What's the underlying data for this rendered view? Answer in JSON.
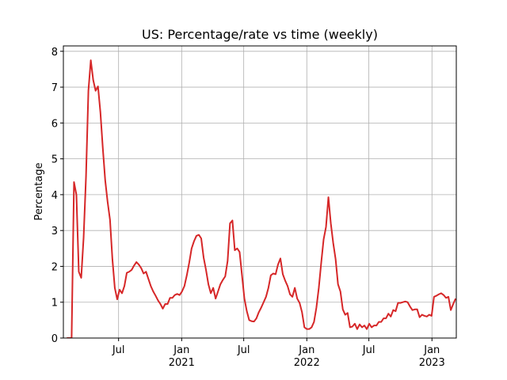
{
  "chart_data": {
    "type": "line",
    "title": "US: Percentage/rate vs time (weekly)",
    "y_label": "Percentage",
    "color": "#d62728",
    "grid": true,
    "xlim": [
      "2020-01-22",
      "2023-03-13"
    ],
    "ylim": [
      0,
      8.15
    ],
    "yticks": [
      0,
      1,
      2,
      3,
      4,
      5,
      6,
      7,
      8
    ],
    "xticks": [
      {
        "value": "2020-07-01",
        "label": "Jul"
      },
      {
        "value": "2021-01-01",
        "label": "Jan\n2021"
      },
      {
        "value": "2021-07-01",
        "label": "Jul"
      },
      {
        "value": "2022-01-01",
        "label": "Jan\n2022"
      },
      {
        "value": "2022-07-01",
        "label": "Jul"
      },
      {
        "value": "2023-01-01",
        "label": "Jan\n2023"
      }
    ],
    "x": [
      "2020-02-01",
      "2020-02-08",
      "2020-02-15",
      "2020-02-22",
      "2020-02-29",
      "2020-03-07",
      "2020-03-14",
      "2020-03-21",
      "2020-03-28",
      "2020-04-04",
      "2020-04-11",
      "2020-04-18",
      "2020-04-25",
      "2020-05-02",
      "2020-05-09",
      "2020-05-16",
      "2020-05-23",
      "2020-05-30",
      "2020-06-06",
      "2020-06-13",
      "2020-06-20",
      "2020-06-27",
      "2020-07-04",
      "2020-07-11",
      "2020-07-18",
      "2020-07-25",
      "2020-08-01",
      "2020-08-08",
      "2020-08-15",
      "2020-08-22",
      "2020-08-29",
      "2020-09-05",
      "2020-09-12",
      "2020-09-19",
      "2020-09-26",
      "2020-10-03",
      "2020-10-10",
      "2020-10-17",
      "2020-10-24",
      "2020-10-31",
      "2020-11-07",
      "2020-11-14",
      "2020-11-21",
      "2020-11-28",
      "2020-12-05",
      "2020-12-12",
      "2020-12-19",
      "2020-12-26",
      "2021-01-02",
      "2021-01-09",
      "2021-01-16",
      "2021-01-23",
      "2021-01-30",
      "2021-02-06",
      "2021-02-13",
      "2021-02-20",
      "2021-02-27",
      "2021-03-06",
      "2021-03-13",
      "2021-03-20",
      "2021-03-27",
      "2021-04-03",
      "2021-04-10",
      "2021-04-17",
      "2021-04-24",
      "2021-05-01",
      "2021-05-08",
      "2021-05-15",
      "2021-05-22",
      "2021-05-29",
      "2021-06-05",
      "2021-06-12",
      "2021-06-19",
      "2021-06-26",
      "2021-07-03",
      "2021-07-10",
      "2021-07-17",
      "2021-07-24",
      "2021-07-31",
      "2021-08-07",
      "2021-08-14",
      "2021-08-21",
      "2021-08-28",
      "2021-09-04",
      "2021-09-11",
      "2021-09-18",
      "2021-09-25",
      "2021-10-02",
      "2021-10-09",
      "2021-10-16",
      "2021-10-23",
      "2021-10-30",
      "2021-11-06",
      "2021-11-13",
      "2021-11-20",
      "2021-11-27",
      "2021-12-04",
      "2021-12-11",
      "2021-12-18",
      "2021-12-25",
      "2022-01-01",
      "2022-01-08",
      "2022-01-15",
      "2022-01-22",
      "2022-01-29",
      "2022-02-05",
      "2022-02-12",
      "2022-02-19",
      "2022-02-26",
      "2022-03-05",
      "2022-03-12",
      "2022-03-19",
      "2022-03-26",
      "2022-04-02",
      "2022-04-09",
      "2022-04-16",
      "2022-04-23",
      "2022-04-30",
      "2022-05-07",
      "2022-05-14",
      "2022-05-21",
      "2022-05-28",
      "2022-06-04",
      "2022-06-11",
      "2022-06-18",
      "2022-06-25",
      "2022-07-02",
      "2022-07-09",
      "2022-07-16",
      "2022-07-23",
      "2022-07-30",
      "2022-08-06",
      "2022-08-13",
      "2022-08-20",
      "2022-08-27",
      "2022-09-03",
      "2022-09-10",
      "2022-09-17",
      "2022-09-24",
      "2022-10-01",
      "2022-10-08",
      "2022-10-15",
      "2022-10-22",
      "2022-10-29",
      "2022-11-05",
      "2022-11-12",
      "2022-11-19",
      "2022-11-26",
      "2022-12-03",
      "2022-12-10",
      "2022-12-17",
      "2022-12-24",
      "2022-12-31",
      "2023-01-07",
      "2023-01-14",
      "2023-01-21",
      "2023-01-28",
      "2023-02-04",
      "2023-02-11",
      "2023-02-18",
      "2023-02-25",
      "2023-03-04",
      "2023-03-11"
    ],
    "values": [
      0,
      0,
      0,
      4.35,
      4.0,
      1.85,
      1.68,
      2.8,
      4.5,
      6.9,
      7.75,
      7.2,
      6.9,
      7.02,
      6.3,
      5.3,
      4.4,
      3.8,
      3.3,
      2.2,
      1.4,
      1.08,
      1.35,
      1.25,
      1.45,
      1.82,
      1.85,
      1.9,
      2.02,
      2.12,
      2.05,
      1.95,
      1.8,
      1.85,
      1.65,
      1.45,
      1.3,
      1.18,
      1.05,
      0.95,
      0.82,
      0.95,
      0.95,
      1.12,
      1.12,
      1.2,
      1.23,
      1.2,
      1.3,
      1.45,
      1.75,
      2.1,
      2.5,
      2.7,
      2.85,
      2.88,
      2.78,
      2.25,
      1.9,
      1.5,
      1.25,
      1.4,
      1.1,
      1.3,
      1.5,
      1.62,
      1.72,
      2.15,
      3.2,
      3.28,
      2.45,
      2.5,
      2.4,
      1.75,
      1.1,
      0.75,
      0.5,
      0.47,
      0.46,
      0.55,
      0.72,
      0.85,
      1.0,
      1.15,
      1.4,
      1.75,
      1.8,
      1.78,
      2.05,
      2.22,
      1.78,
      1.6,
      1.45,
      1.22,
      1.15,
      1.4,
      1.1,
      0.98,
      0.72,
      0.3,
      0.25,
      0.25,
      0.3,
      0.45,
      0.85,
      1.4,
      2.1,
      2.75,
      3.1,
      3.93,
      3.2,
      2.65,
      2.2,
      1.5,
      1.3,
      0.8,
      0.65,
      0.7,
      0.3,
      0.32,
      0.4,
      0.25,
      0.38,
      0.3,
      0.35,
      0.25,
      0.4,
      0.3,
      0.35,
      0.35,
      0.45,
      0.45,
      0.55,
      0.55,
      0.68,
      0.6,
      0.78,
      0.75,
      0.98,
      0.98,
      1.0,
      1.02,
      1.0,
      0.88,
      0.78,
      0.8,
      0.8,
      0.58,
      0.65,
      0.62,
      0.6,
      0.65,
      0.62,
      1.15,
      1.18,
      1.22,
      1.25,
      1.2,
      1.12,
      1.15,
      0.78,
      0.95,
      1.1
    ]
  }
}
